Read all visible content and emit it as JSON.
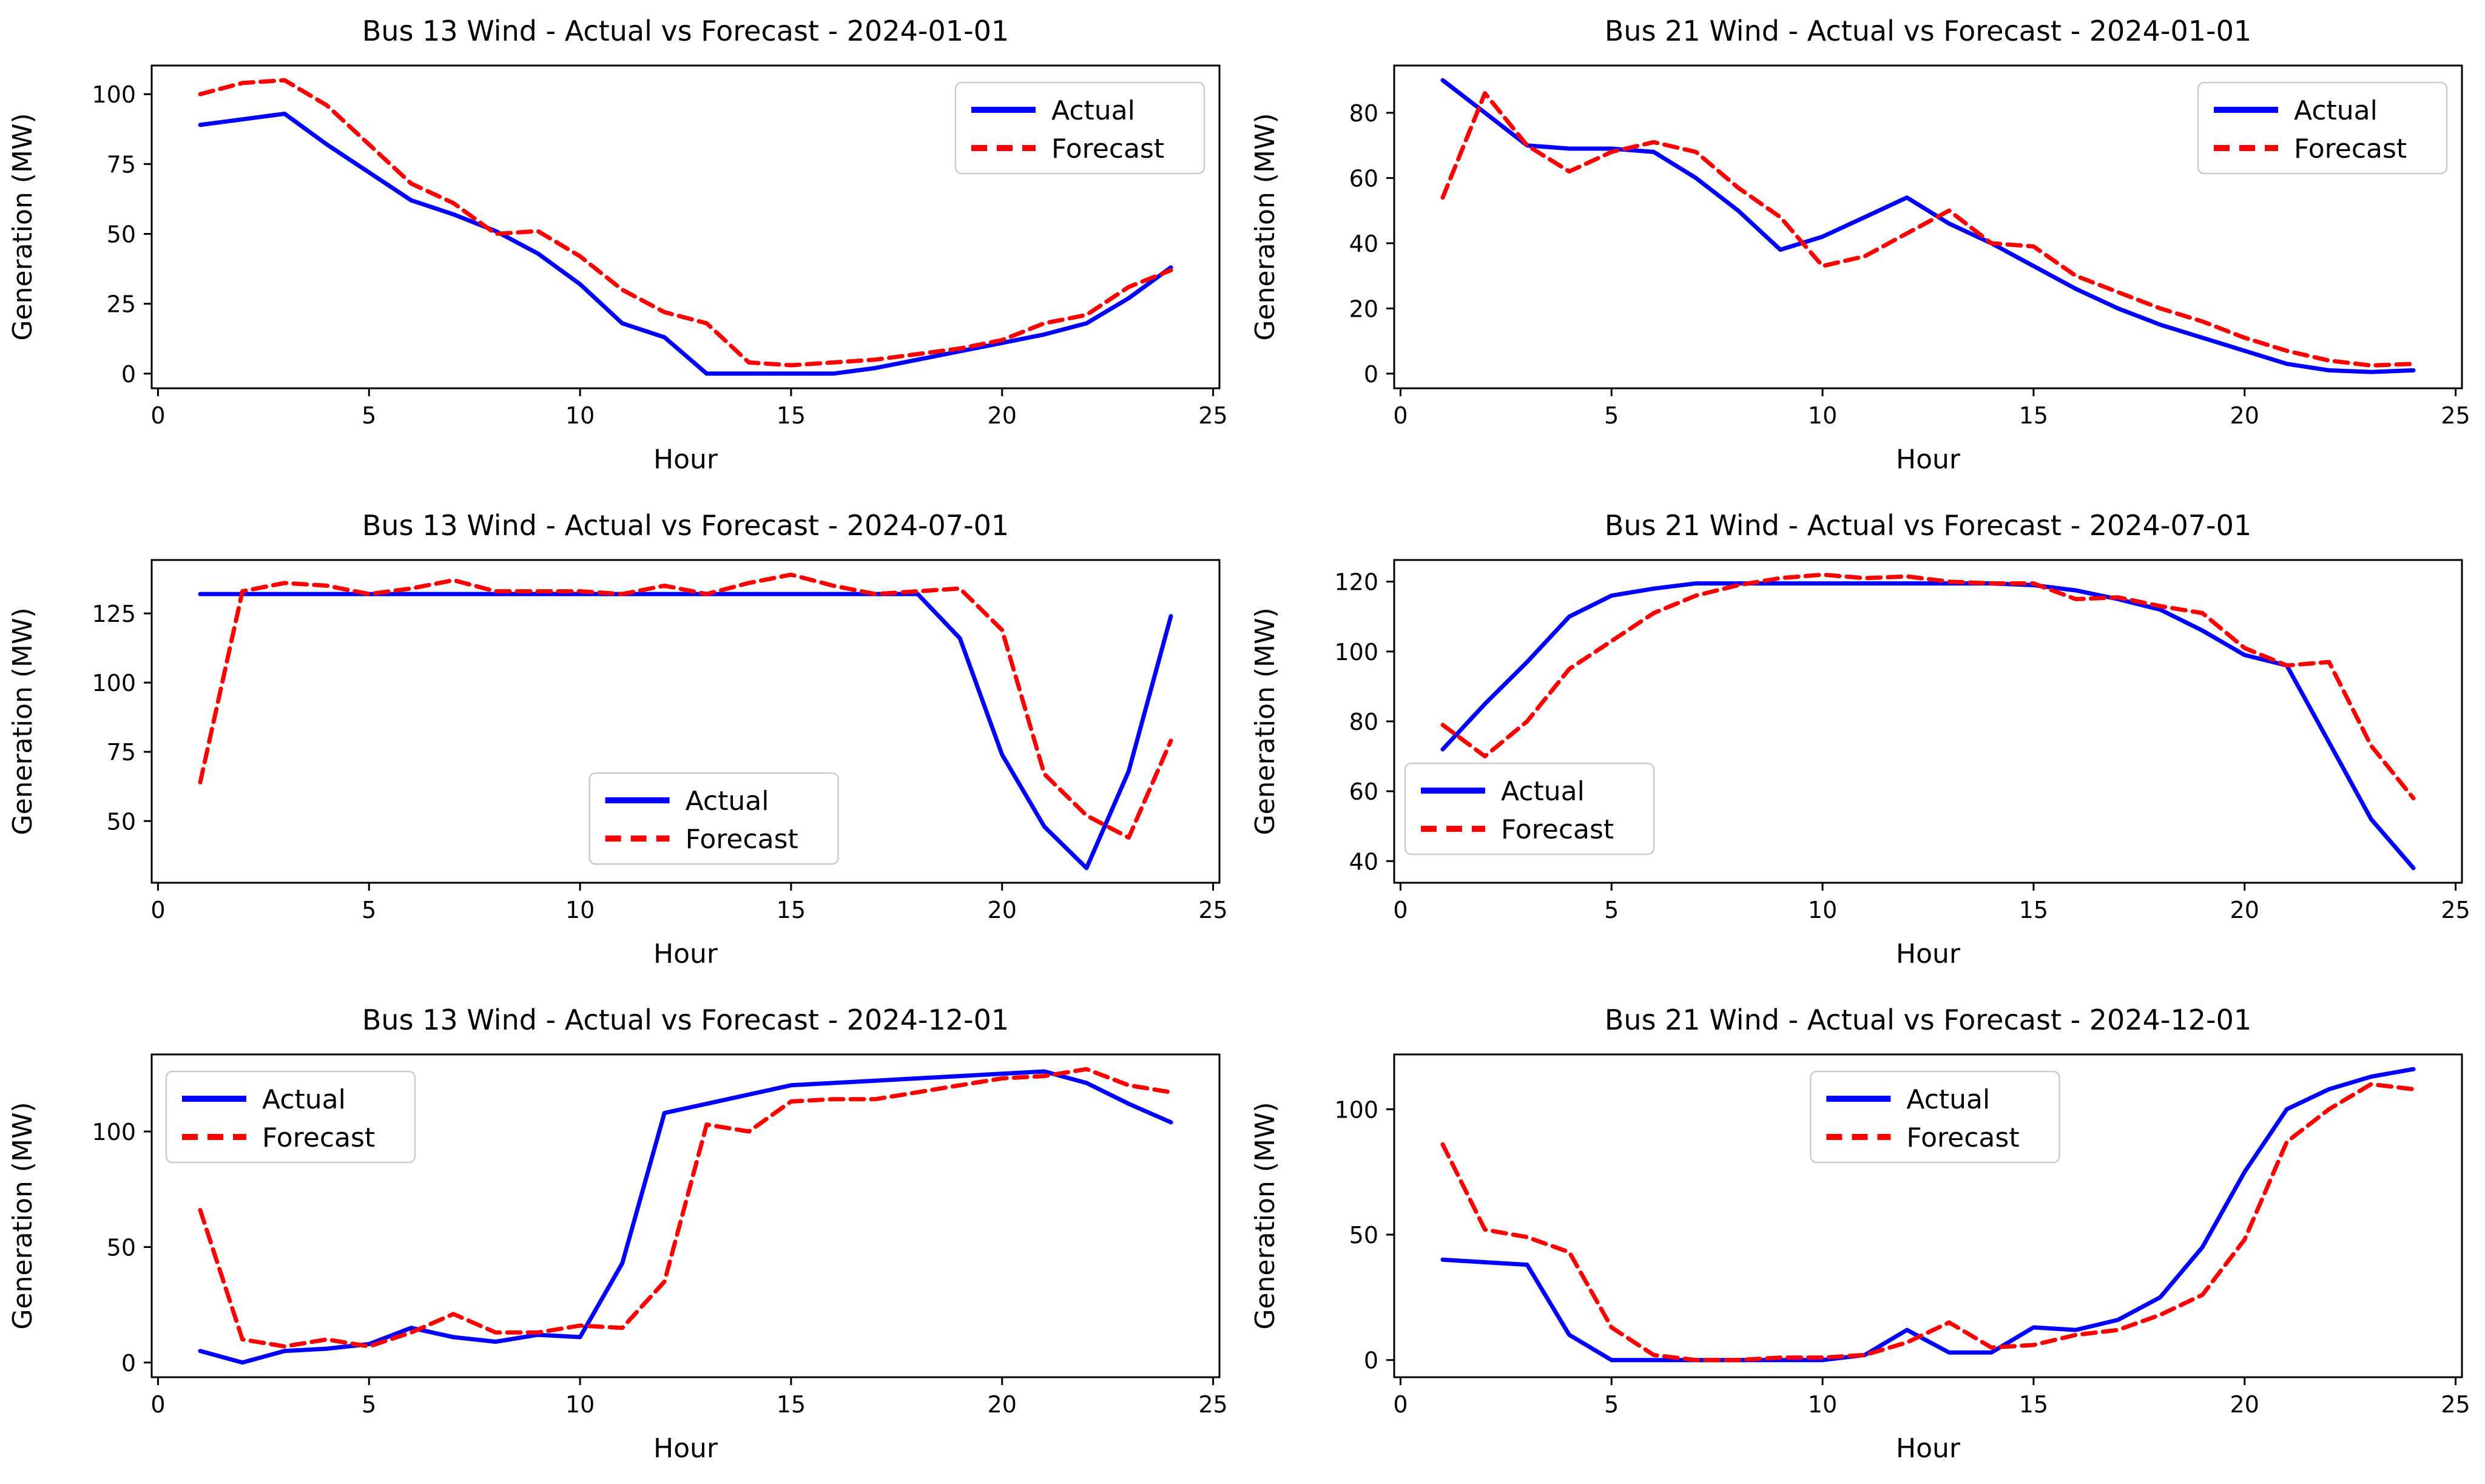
{
  "figure": {
    "background": "#ffffff",
    "rows": 3,
    "cols": 2
  },
  "colors": {
    "actual": "#0000ff",
    "forecast": "#ff0000",
    "axis": "#000000",
    "tick_label": "#000000",
    "legend_border": "#cccccc",
    "legend_fill": "#ffffff"
  },
  "legend": {
    "actual_label": "Actual",
    "forecast_label": "Forecast"
  },
  "chart_data": [
    {
      "type": "line",
      "title": "Bus 13 Wind - Actual vs Forecast - 2024-01-01",
      "xlabel": "Hour",
      "ylabel": "Generation (MW)",
      "x": [
        1,
        2,
        3,
        4,
        5,
        6,
        7,
        8,
        9,
        10,
        11,
        12,
        13,
        14,
        15,
        16,
        17,
        18,
        19,
        20,
        21,
        22,
        23,
        24
      ],
      "series": [
        {
          "name": "Actual",
          "color": "#0000ff",
          "style": "solid",
          "values": [
            89,
            91,
            93,
            82,
            72,
            62,
            57,
            51,
            43,
            32,
            18,
            13,
            0,
            0,
            0,
            0,
            2,
            5,
            8,
            11,
            14,
            18,
            27,
            38
          ]
        },
        {
          "name": "Forecast",
          "color": "#ff0000",
          "style": "dashed",
          "values": [
            100,
            104,
            105,
            96,
            82,
            68,
            61,
            50,
            51,
            42,
            30,
            22,
            18,
            4,
            3,
            4,
            5,
            7,
            9,
            12,
            18,
            21,
            31,
            37
          ]
        }
      ],
      "xlim": [
        -0.15,
        25.15
      ],
      "ylim": [
        -5.25,
        110.25
      ],
      "xticks": [
        0,
        5,
        10,
        15,
        20,
        25
      ],
      "yticks": [
        0,
        25,
        50,
        75,
        100
      ],
      "grid": false,
      "legend_loc": "upper-right"
    },
    {
      "type": "line",
      "title": "Bus 21 Wind - Actual vs Forecast - 2024-01-01",
      "xlabel": "Hour",
      "ylabel": "Generation (MW)",
      "x": [
        1,
        2,
        3,
        4,
        5,
        6,
        7,
        8,
        9,
        10,
        11,
        12,
        13,
        14,
        15,
        16,
        17,
        18,
        19,
        20,
        21,
        22,
        23,
        24
      ],
      "series": [
        {
          "name": "Actual",
          "color": "#0000ff",
          "style": "solid",
          "values": [
            90,
            80,
            70,
            69,
            69,
            68,
            60,
            50,
            38,
            42,
            48,
            54,
            46,
            40,
            33,
            26,
            20,
            15,
            11,
            7,
            3,
            1,
            0.5,
            1
          ]
        },
        {
          "name": "Forecast",
          "color": "#ff0000",
          "style": "dashed",
          "values": [
            54,
            86,
            70,
            62,
            68,
            71,
            68,
            57,
            48,
            33,
            36,
            43,
            50,
            40,
            39,
            30,
            25,
            20,
            16,
            11,
            7,
            4,
            2.5,
            3
          ]
        }
      ],
      "xlim": [
        -0.15,
        25.15
      ],
      "ylim": [
        -4.5,
        94.5
      ],
      "xticks": [
        0,
        5,
        10,
        15,
        20,
        25
      ],
      "yticks": [
        0,
        20,
        40,
        60,
        80
      ],
      "grid": false,
      "legend_loc": "upper-right"
    },
    {
      "type": "line",
      "title": "Bus 13 Wind - Actual vs Forecast - 2024-07-01",
      "xlabel": "Hour",
      "ylabel": "Generation (MW)",
      "x": [
        1,
        2,
        3,
        4,
        5,
        6,
        7,
        8,
        9,
        10,
        11,
        12,
        13,
        14,
        15,
        16,
        17,
        18,
        19,
        20,
        21,
        22,
        23,
        24
      ],
      "series": [
        {
          "name": "Actual",
          "color": "#0000ff",
          "style": "solid",
          "values": [
            132,
            132,
            132,
            132,
            132,
            132,
            132,
            132,
            132,
            132,
            132,
            132,
            132,
            132,
            132,
            132,
            132,
            132,
            116,
            74,
            48,
            33,
            68,
            124
          ]
        },
        {
          "name": "Forecast",
          "color": "#ff0000",
          "style": "dashed",
          "values": [
            64,
            133,
            136,
            135,
            132,
            134,
            137,
            133,
            133,
            133,
            132,
            135,
            132,
            136,
            139,
            135,
            132,
            133,
            134,
            119,
            67,
            52,
            44,
            79
          ]
        }
      ],
      "xlim": [
        -0.15,
        25.15
      ],
      "ylim": [
        27.7,
        144.3
      ],
      "xticks": [
        0,
        5,
        10,
        15,
        20,
        25
      ],
      "yticks": [
        50,
        75,
        100,
        125
      ],
      "grid": false,
      "legend_loc": "lower-center"
    },
    {
      "type": "line",
      "title": "Bus 21 Wind - Actual vs Forecast - 2024-07-01",
      "xlabel": "Hour",
      "ylabel": "Generation (MW)",
      "x": [
        1,
        2,
        3,
        4,
        5,
        6,
        7,
        8,
        9,
        10,
        11,
        12,
        13,
        14,
        15,
        16,
        17,
        18,
        19,
        20,
        21,
        22,
        23,
        24
      ],
      "series": [
        {
          "name": "Actual",
          "color": "#0000ff",
          "style": "solid",
          "values": [
            72,
            85,
            97,
            110,
            116,
            118,
            119.5,
            119.5,
            119.5,
            119.5,
            119.5,
            119.5,
            119.5,
            119.5,
            119,
            117.5,
            115,
            112,
            106,
            99,
            96,
            74,
            52,
            38
          ]
        },
        {
          "name": "Forecast",
          "color": "#ff0000",
          "style": "dashed",
          "values": [
            79,
            70,
            80,
            95,
            103,
            111,
            116,
            119,
            121,
            122,
            121,
            121.5,
            120,
            119.5,
            119.5,
            115,
            115.5,
            113,
            111,
            101,
            96,
            97,
            73,
            58
          ]
        }
      ],
      "xlim": [
        -0.15,
        25.15
      ],
      "ylim": [
        33.8,
        126.2
      ],
      "xticks": [
        0,
        5,
        10,
        15,
        20,
        25
      ],
      "yticks": [
        40,
        60,
        80,
        100,
        120
      ],
      "grid": false,
      "legend_loc": "lower-left"
    },
    {
      "type": "line",
      "title": "Bus 13 Wind - Actual vs Forecast - 2024-12-01",
      "xlabel": "Hour",
      "ylabel": "Generation (MW)",
      "x": [
        1,
        2,
        3,
        4,
        5,
        6,
        7,
        8,
        9,
        10,
        11,
        12,
        13,
        14,
        15,
        16,
        17,
        18,
        19,
        20,
        21,
        22,
        23,
        24
      ],
      "series": [
        {
          "name": "Actual",
          "color": "#0000ff",
          "style": "solid",
          "values": [
            5,
            0,
            5,
            6,
            8,
            15,
            11,
            9,
            12,
            11,
            43,
            108,
            112,
            116,
            120,
            121,
            122,
            123,
            124,
            125,
            126,
            121,
            112,
            104
          ]
        },
        {
          "name": "Forecast",
          "color": "#ff0000",
          "style": "dashed",
          "values": [
            66,
            10,
            7,
            10,
            7,
            13,
            21,
            13,
            13,
            16,
            15,
            35,
            103,
            100,
            113,
            114,
            114,
            117,
            120,
            123,
            124,
            127,
            120,
            117
          ]
        }
      ],
      "xlim": [
        -0.15,
        25.15
      ],
      "ylim": [
        -6.35,
        133.35
      ],
      "xticks": [
        0,
        5,
        10,
        15,
        20,
        25
      ],
      "yticks": [
        0,
        50,
        100
      ],
      "grid": false,
      "legend_loc": "upper-left"
    },
    {
      "type": "line",
      "title": "Bus 21 Wind - Actual vs Forecast - 2024-12-01",
      "xlabel": "Hour",
      "ylabel": "Generation (MW)",
      "x": [
        1,
        2,
        3,
        4,
        5,
        6,
        7,
        8,
        9,
        10,
        11,
        12,
        13,
        14,
        15,
        16,
        17,
        18,
        19,
        20,
        21,
        22,
        23,
        24
      ],
      "series": [
        {
          "name": "Actual",
          "color": "#0000ff",
          "style": "solid",
          "values": [
            40,
            39,
            38,
            10,
            0,
            0,
            0,
            0,
            0,
            0,
            2,
            12,
            3,
            3,
            13,
            12,
            16,
            25,
            45,
            75,
            100,
            108,
            113,
            116
          ]
        },
        {
          "name": "Forecast",
          "color": "#ff0000",
          "style": "dashed",
          "values": [
            86,
            52,
            49,
            43,
            13,
            2,
            0,
            0,
            1,
            1,
            2,
            7,
            15,
            5,
            6,
            10,
            12,
            18,
            26,
            48,
            87,
            100,
            110,
            108
          ]
        }
      ],
      "xlim": [
        -0.15,
        25.15
      ],
      "ylim": [
        -6.85,
        121.85
      ],
      "xticks": [
        0,
        5,
        10,
        15,
        20,
        25
      ],
      "yticks": [
        0,
        50,
        100
      ],
      "grid": false,
      "legend_loc": "upper-center"
    }
  ]
}
